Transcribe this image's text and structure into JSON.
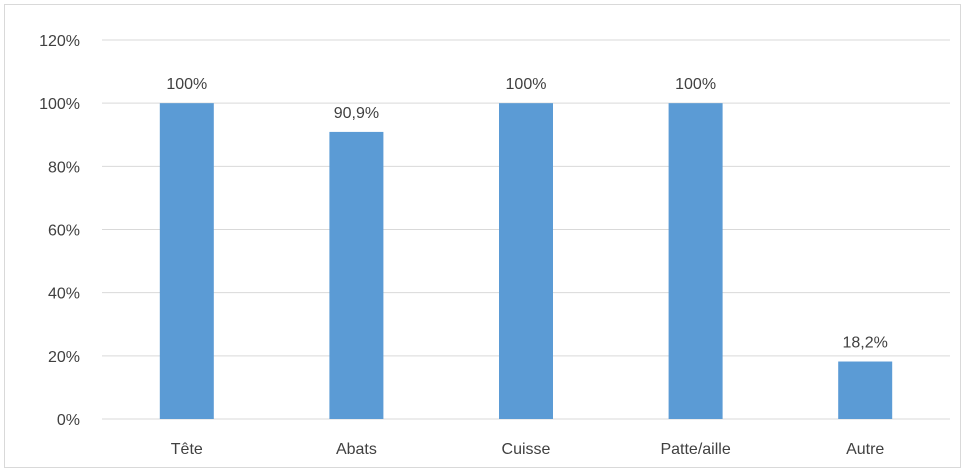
{
  "chart_data": {
    "type": "bar",
    "categories": [
      "Tête",
      "Abats",
      "Cuisse",
      "Patte/aille",
      "Autre"
    ],
    "values": [
      100,
      90.9,
      100,
      100,
      18.2
    ],
    "data_labels": [
      "100%",
      "90,9%",
      "100%",
      "100%",
      "18,2%"
    ],
    "ylim": [
      0,
      120
    ],
    "y_ticks": [
      0,
      20,
      40,
      60,
      80,
      100,
      120
    ],
    "y_tick_labels": [
      "0%",
      "20%",
      "40%",
      "60%",
      "80%",
      "100%",
      "120%"
    ],
    "grid": true,
    "legend": "none",
    "bar_color": "#5B9BD5",
    "grid_color": "#d9d9d9",
    "title": "",
    "xlabel": "",
    "ylabel": ""
  }
}
